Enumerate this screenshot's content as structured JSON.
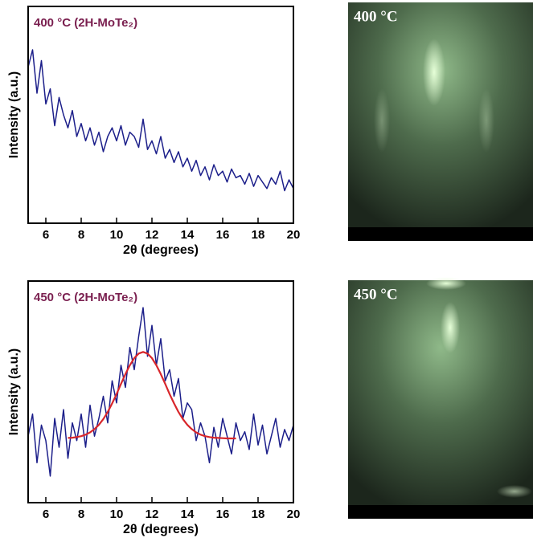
{
  "chart_data": [
    {
      "type": "line",
      "title": "400 °C (2H-MoTe₂)",
      "xlabel": "2θ (degrees)",
      "ylabel": "Intensity (a.u.)",
      "x": [
        5,
        5.25,
        5.5,
        5.75,
        6,
        6.25,
        6.5,
        6.75,
        7,
        7.25,
        7.5,
        7.75,
        8,
        8.25,
        8.5,
        8.75,
        9,
        9.25,
        9.5,
        9.75,
        10,
        10.25,
        10.5,
        10.75,
        11,
        11.25,
        11.5,
        11.75,
        12,
        12.25,
        12.5,
        12.75,
        13,
        13.25,
        13.5,
        13.75,
        14,
        14.25,
        14.5,
        14.75,
        15,
        15.25,
        15.5,
        15.75,
        16,
        16.25,
        16.5,
        16.75,
        17,
        17.25,
        17.5,
        17.75,
        18,
        18.25,
        18.5,
        18.75,
        19,
        19.25,
        19.5,
        19.75,
        20
      ],
      "series": [
        {
          "color": "#1c1f8a",
          "values": [
            72,
            80,
            60,
            75,
            55,
            62,
            45,
            58,
            50,
            44,
            52,
            40,
            46,
            38,
            44,
            36,
            42,
            33,
            40,
            44,
            38,
            45,
            36,
            42,
            40,
            35,
            48,
            34,
            38,
            32,
            40,
            30,
            34,
            28,
            33,
            26,
            30,
            24,
            29,
            22,
            26,
            20,
            27,
            22,
            24,
            19,
            25,
            21,
            22,
            18,
            23,
            17,
            22,
            19,
            16,
            21,
            18,
            24,
            15,
            20,
            16
          ]
        }
      ],
      "xlim": [
        5,
        20
      ],
      "ylim": [
        0,
        100
      ],
      "xticks": [
        6,
        8,
        10,
        12,
        14,
        16,
        18,
        20
      ]
    },
    {
      "type": "line",
      "title": "450 °C (2H-MoTe₂)",
      "xlabel": "2θ (degrees)",
      "ylabel": "Intensity (a.u.)",
      "x": [
        5,
        5.25,
        5.5,
        5.75,
        6,
        6.25,
        6.5,
        6.75,
        7,
        7.25,
        7.5,
        7.75,
        8,
        8.25,
        8.5,
        8.75,
        9,
        9.25,
        9.5,
        9.75,
        10,
        10.25,
        10.5,
        10.75,
        11,
        11.25,
        11.5,
        11.75,
        12,
        12.25,
        12.5,
        12.75,
        13,
        13.25,
        13.5,
        13.75,
        14,
        14.25,
        14.5,
        14.75,
        15,
        15.25,
        15.5,
        15.75,
        16,
        16.25,
        16.5,
        16.75,
        17,
        17.25,
        17.5,
        17.75,
        18,
        18.25,
        18.5,
        18.75,
        19,
        19.25,
        19.5,
        19.75,
        20
      ],
      "series": [
        {
          "color": "#1c1f8a",
          "values": [
            30,
            40,
            18,
            35,
            28,
            12,
            38,
            25,
            42,
            20,
            36,
            28,
            40,
            25,
            44,
            30,
            38,
            48,
            36,
            55,
            45,
            62,
            52,
            70,
            60,
            75,
            88,
            66,
            80,
            62,
            74,
            55,
            60,
            48,
            56,
            38,
            45,
            42,
            28,
            36,
            30,
            18,
            34,
            25,
            38,
            30,
            22,
            36,
            28,
            32,
            24,
            40,
            26,
            35,
            22,
            30,
            38,
            25,
            33,
            28,
            35
          ]
        },
        {
          "color": "#d8262b",
          "values": [
            null,
            null,
            null,
            null,
            null,
            null,
            null,
            null,
            null,
            29.2,
            29.3,
            29.6,
            30.0,
            30.7,
            31.7,
            33.2,
            35.1,
            37.7,
            40.9,
            44.8,
            49.0,
            53.6,
            58.0,
            62.0,
            65.2,
            67.3,
            68,
            67.3,
            65.2,
            62.0,
            58.0,
            53.6,
            49.0,
            44.8,
            40.9,
            37.7,
            35.1,
            33.2,
            31.7,
            30.7,
            30.0,
            29.6,
            29.3,
            29.2,
            29.1,
            29.0,
            29.0,
            29.0,
            null,
            null,
            null,
            null,
            null,
            null,
            null,
            null,
            null,
            null,
            null,
            null,
            null
          ]
        }
      ],
      "xlim": [
        5,
        20
      ],
      "ylim": [
        0,
        100
      ],
      "xticks": [
        6,
        8,
        10,
        12,
        14,
        16,
        18,
        20
      ]
    }
  ],
  "images": [
    {
      "label": "400 °C"
    },
    {
      "label": "450 °C"
    }
  ]
}
